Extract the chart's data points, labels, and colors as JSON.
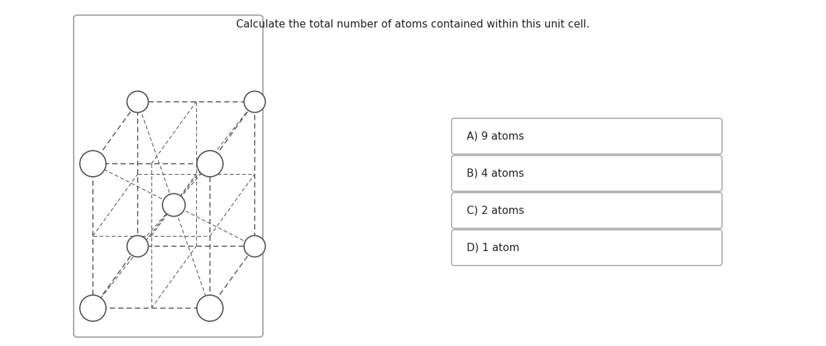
{
  "title": "Calculate the total number of atoms contained within this unit cell.",
  "title_fontsize": 11,
  "choices": [
    "A) 9 atoms",
    "B) 4 atoms",
    "C) 2 atoms",
    "D) 1 atom"
  ],
  "bg_color": "#ffffff",
  "line_color": "#555555",
  "atom_facecolor": "#ffffff",
  "atom_edgecolor": "#555555",
  "box_edgecolor": "#aaaaaa",
  "choice_fontsize": 11
}
